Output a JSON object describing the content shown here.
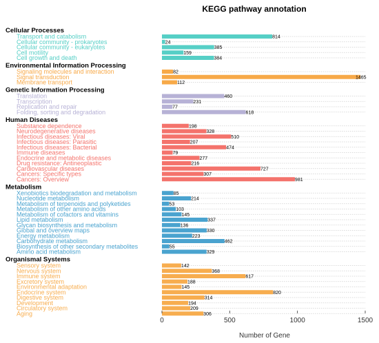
{
  "chart_data": {
    "type": "bar",
    "orientation": "horizontal",
    "title": "KEGG pathway annotation",
    "xlabel": "Number of Gene",
    "ylabel": "",
    "xlim": [
      0,
      1500
    ],
    "x_ticks": [
      "0",
      "500",
      "1000",
      "1500"
    ],
    "grid": "dotted-horizontal",
    "groups": [
      {
        "name": "Cellular Processes",
        "color": "#56cfc6",
        "items": [
          {
            "label": "Transport and catabolism",
            "value": 814
          },
          {
            "label": "Cellular community - prokaryotes",
            "value": 24
          },
          {
            "label": "Cellular community - eukaryotes",
            "value": 385
          },
          {
            "label": "Cell motility",
            "value": 159
          },
          {
            "label": "Cell growth and death",
            "value": 384
          }
        ]
      },
      {
        "name": "Environmental Information Processing",
        "color": "#f7a948",
        "items": [
          {
            "label": "Signaling molecules and interaction",
            "value": 82
          },
          {
            "label": "Signal transduction",
            "value": 1465
          },
          {
            "label": "Membrane transport",
            "value": 112
          }
        ]
      },
      {
        "name": "Genetic Information Processing",
        "color": "#b7b2d6",
        "items": [
          {
            "label": "Translation",
            "value": 460
          },
          {
            "label": "Transcription",
            "value": 231
          },
          {
            "label": "Replication and repair",
            "value": 77
          },
          {
            "label": "Folding, sorting and degradation",
            "value": 618
          }
        ]
      },
      {
        "name": "Human Diseases",
        "color": "#f4736c",
        "items": [
          {
            "label": "Substance dependence",
            "value": 198
          },
          {
            "label": "Neurodegenerative diseases",
            "value": 328
          },
          {
            "label": "Infectious diseases: Viral",
            "value": 510
          },
          {
            "label": "Infectious diseases: Parasitic",
            "value": 207
          },
          {
            "label": "Infectious diseases: Bacterial",
            "value": 474
          },
          {
            "label": "Immune diseases",
            "value": 79
          },
          {
            "label": "Endocrine and metabolic diseases",
            "value": 277
          },
          {
            "label": "Drug resistance: Antineoplastic",
            "value": 216
          },
          {
            "label": "Cardiovascular diseases",
            "value": 727
          },
          {
            "label": "Cancers: Specific types",
            "value": 307
          },
          {
            "label": "Cancers: Overview",
            "value": 981
          }
        ]
      },
      {
        "name": "Metabolism",
        "color": "#4aa3cf",
        "items": [
          {
            "label": "Xenobiotics biodegradation and metabolism",
            "value": 85
          },
          {
            "label": "Nucleotide metabolism",
            "value": 214
          },
          {
            "label": "Metabolism of terpenoids and polyketides",
            "value": 53
          },
          {
            "label": "Metabolism of other amino acids",
            "value": 103
          },
          {
            "label": "Metabolism of cofactors and vitamins",
            "value": 145
          },
          {
            "label": "Lipid metabolism",
            "value": 337
          },
          {
            "label": "Glycan biosynthesis and metabolism",
            "value": 136
          },
          {
            "label": "Global and overview maps",
            "value": 330
          },
          {
            "label": "Energy metabolism",
            "value": 223
          },
          {
            "label": "Carbohydrate metabolism",
            "value": 462
          },
          {
            "label": "Biosynthesis of other secondary metabolites",
            "value": 55
          },
          {
            "label": "Amino acid metabolism",
            "value": 329
          }
        ]
      },
      {
        "name": "Organismal Systems",
        "color": "#f7ad4f",
        "items": [
          {
            "label": "Sensory system",
            "value": 142
          },
          {
            "label": "Nervous system",
            "value": 368
          },
          {
            "label": "Immune system",
            "value": 617
          },
          {
            "label": "Excretory system",
            "value": 188
          },
          {
            "label": "Environmental adaptation",
            "value": 145
          },
          {
            "label": "Endocrine system",
            "value": 820
          },
          {
            "label": "Digestive system",
            "value": 314
          },
          {
            "label": "Development",
            "value": 194
          },
          {
            "label": "Circulatory system",
            "value": 209
          },
          {
            "label": "Aging",
            "value": 306
          }
        ]
      }
    ]
  }
}
